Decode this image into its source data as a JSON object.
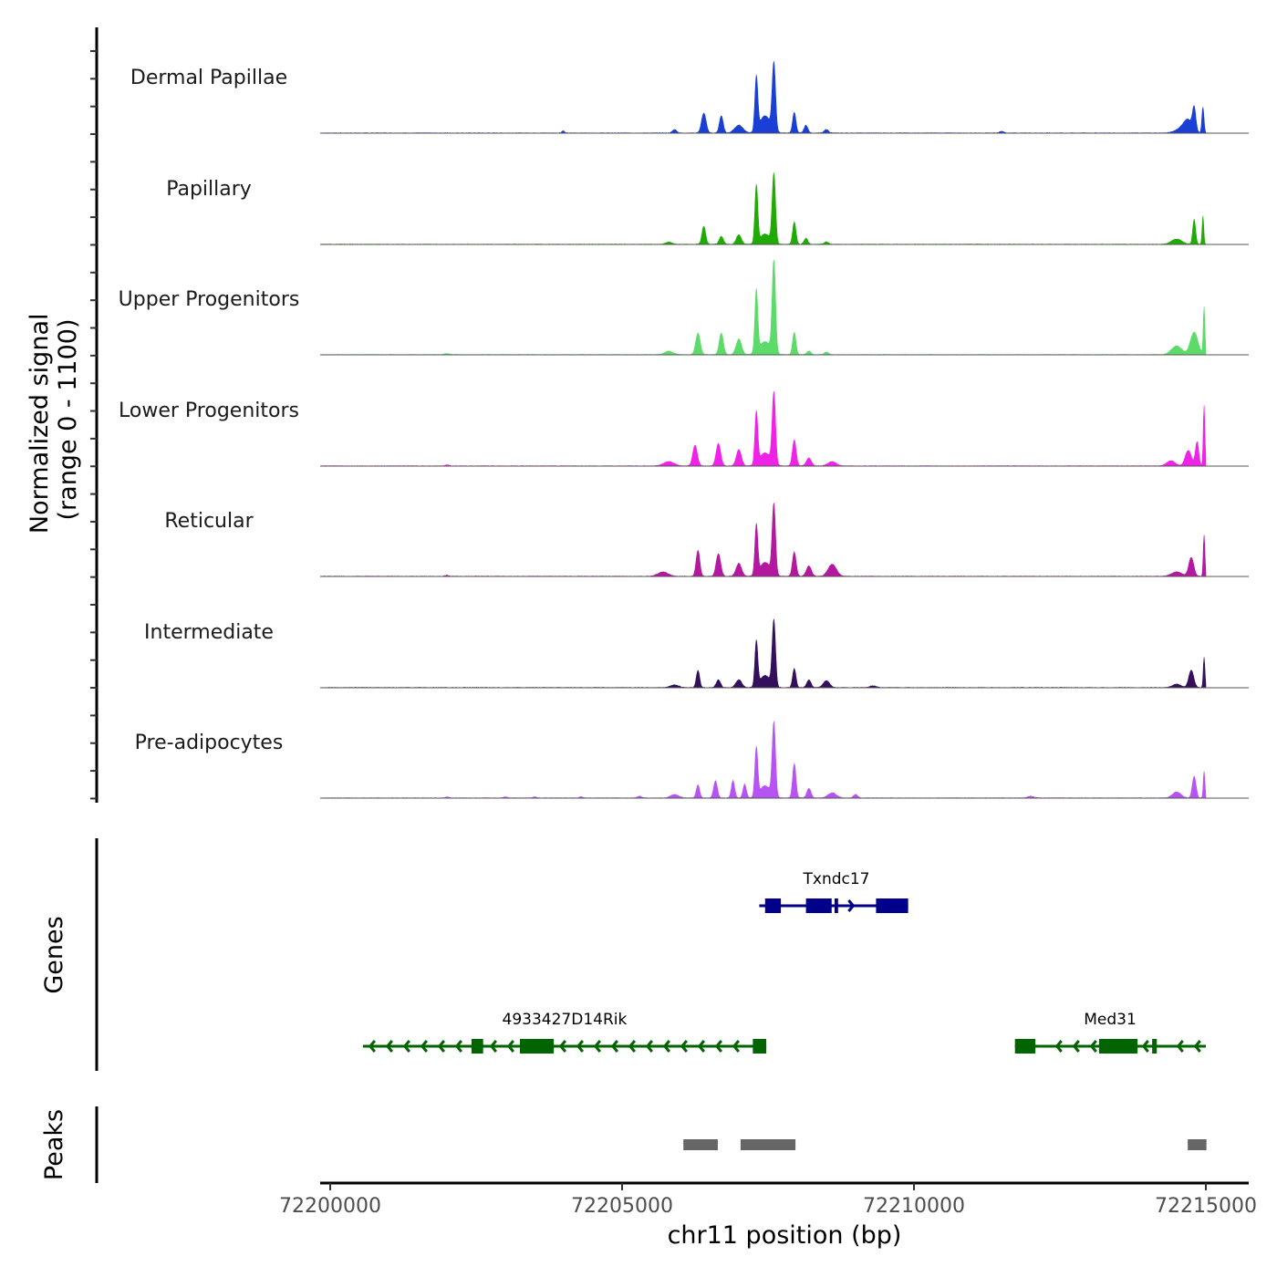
{
  "chart_data": {
    "type": "area",
    "title": "",
    "chromosome": "chr11",
    "xlabel": "chr11 position (bp)",
    "ylabel": "Normalized signal\n(range 0 - 1100)",
    "ylabel_lines": [
      "Normalized signal",
      "(range 0 - 1100)"
    ],
    "ylim": [
      0,
      1100
    ],
    "xlim": [
      72199850,
      72215700
    ],
    "x_ticks": [
      72200000,
      72205000,
      72210000,
      72215000
    ],
    "x_tick_labels": [
      "72200000",
      "72205000",
      "72210000",
      "72215000"
    ],
    "signal_start": 72199850,
    "signal_end": 72215000,
    "tracks": [
      {
        "name": "Dermal Papillae",
        "color": "#1a3fd6",
        "peaks": [
          [
            72203990,
            25,
            60
          ],
          [
            72205900,
            40,
            100
          ],
          [
            72206400,
            230,
            110
          ],
          [
            72206700,
            200,
            90
          ],
          [
            72207000,
            90,
            200
          ],
          [
            72207300,
            620,
            70
          ],
          [
            72207600,
            780,
            80
          ],
          [
            72207450,
            200,
            260
          ],
          [
            72207950,
            240,
            80
          ],
          [
            72208150,
            90,
            90
          ],
          [
            72208500,
            40,
            100
          ],
          [
            72211500,
            20,
            100
          ],
          [
            72214600,
            60,
            300
          ],
          [
            72214800,
            260,
            80
          ],
          [
            72214950,
            300,
            50
          ],
          [
            72214700,
            120,
            200
          ]
        ]
      },
      {
        "name": "Papillary",
        "color": "#1fab04",
        "peaks": [
          [
            72205800,
            25,
            150
          ],
          [
            72206400,
            210,
            90
          ],
          [
            72206700,
            90,
            100
          ],
          [
            72207000,
            110,
            120
          ],
          [
            72207300,
            670,
            70
          ],
          [
            72207600,
            800,
            80
          ],
          [
            72207450,
            120,
            250
          ],
          [
            72207950,
            260,
            80
          ],
          [
            72208150,
            70,
            90
          ],
          [
            72208500,
            30,
            100
          ],
          [
            72214500,
            60,
            250
          ],
          [
            72214800,
            290,
            70
          ],
          [
            72214950,
            330,
            40
          ]
        ]
      },
      {
        "name": "Upper Progenitors",
        "color": "#5cdb6a",
        "peaks": [
          [
            72202000,
            15,
            100
          ],
          [
            72205800,
            40,
            200
          ],
          [
            72206300,
            250,
            110
          ],
          [
            72206700,
            250,
            100
          ],
          [
            72207000,
            180,
            130
          ],
          [
            72207300,
            720,
            70
          ],
          [
            72207600,
            1070,
            80
          ],
          [
            72207450,
            150,
            280
          ],
          [
            72207950,
            260,
            80
          ],
          [
            72208200,
            40,
            100
          ],
          [
            72208500,
            30,
            100
          ],
          [
            72214500,
            100,
            250
          ],
          [
            72214800,
            260,
            180
          ],
          [
            72214970,
            550,
            40
          ]
        ]
      },
      {
        "name": "Lower Progenitors",
        "color": "#f022e8",
        "peaks": [
          [
            72202000,
            10,
            100
          ],
          [
            72205800,
            50,
            250
          ],
          [
            72206250,
            240,
            110
          ],
          [
            72206650,
            260,
            110
          ],
          [
            72207000,
            190,
            120
          ],
          [
            72207300,
            600,
            70
          ],
          [
            72207600,
            820,
            80
          ],
          [
            72207450,
            150,
            270
          ],
          [
            72207950,
            300,
            90
          ],
          [
            72208200,
            90,
            120
          ],
          [
            72208600,
            50,
            200
          ],
          [
            72214400,
            60,
            200
          ],
          [
            72214700,
            180,
            150
          ],
          [
            72214850,
            280,
            80
          ],
          [
            72214970,
            700,
            40
          ]
        ]
      },
      {
        "name": "Reticular",
        "color": "#b3189f",
        "peaks": [
          [
            72202000,
            10,
            100
          ],
          [
            72205700,
            50,
            250
          ],
          [
            72206300,
            300,
            90
          ],
          [
            72206650,
            260,
            110
          ],
          [
            72207000,
            150,
            130
          ],
          [
            72207300,
            570,
            70
          ],
          [
            72207600,
            810,
            80
          ],
          [
            72207450,
            160,
            260
          ],
          [
            72207950,
            280,
            90
          ],
          [
            72208200,
            120,
            120
          ],
          [
            72208600,
            140,
            200
          ],
          [
            72214500,
            50,
            250
          ],
          [
            72214750,
            220,
            120
          ],
          [
            72214970,
            480,
            40
          ]
        ]
      },
      {
        "name": "Intermediate",
        "color": "#330f5c",
        "peaks": [
          [
            72205900,
            30,
            200
          ],
          [
            72206300,
            200,
            80
          ],
          [
            72206650,
            90,
            100
          ],
          [
            72207000,
            90,
            140
          ],
          [
            72207300,
            520,
            70
          ],
          [
            72207600,
            760,
            80
          ],
          [
            72207450,
            140,
            250
          ],
          [
            72207950,
            220,
            80
          ],
          [
            72208200,
            90,
            100
          ],
          [
            72208500,
            80,
            150
          ],
          [
            72209300,
            20,
            150
          ],
          [
            72214500,
            40,
            200
          ],
          [
            72214750,
            200,
            120
          ],
          [
            72214970,
            350,
            40
          ]
        ]
      },
      {
        "name": "Pre-adipocytes",
        "color": "#b753f2",
        "peaks": [
          [
            72202000,
            12,
            100
          ],
          [
            72203000,
            12,
            80
          ],
          [
            72203500,
            12,
            80
          ],
          [
            72204300,
            15,
            80
          ],
          [
            72205300,
            20,
            100
          ],
          [
            72205900,
            40,
            200
          ],
          [
            72206300,
            150,
            80
          ],
          [
            72206600,
            200,
            90
          ],
          [
            72206900,
            200,
            80
          ],
          [
            72207100,
            160,
            80
          ],
          [
            72207300,
            560,
            70
          ],
          [
            72207600,
            850,
            80
          ],
          [
            72207450,
            140,
            260
          ],
          [
            72207950,
            400,
            80
          ],
          [
            72208200,
            110,
            100
          ],
          [
            72208600,
            60,
            200
          ],
          [
            72209000,
            40,
            100
          ],
          [
            72212000,
            20,
            150
          ],
          [
            72214500,
            70,
            200
          ],
          [
            72214800,
            250,
            90
          ],
          [
            72214970,
            310,
            40
          ]
        ]
      }
    ],
    "genes": [
      {
        "name": "Txndc17",
        "strand": "+",
        "color": "#00008b",
        "row": 1,
        "start": 72207350,
        "end": 72209900,
        "exons": [
          [
            72207450,
            72207720
          ],
          [
            72208150,
            72208590
          ],
          [
            72208640,
            72208700
          ],
          [
            72209350,
            72209900
          ]
        ]
      },
      {
        "name": "4933427D14Rik",
        "strand": "-",
        "color": "#006400",
        "row": 2,
        "start": 72200560,
        "end": 72207470,
        "exons": [
          [
            72202420,
            72202620
          ],
          [
            72203250,
            72203830
          ],
          [
            72207240,
            72207470
          ]
        ]
      },
      {
        "name": "Med31",
        "strand": "-",
        "color": "#006400",
        "row": 2,
        "start": 72211730,
        "end": 72215000,
        "exons": [
          [
            72211730,
            72212080
          ],
          [
            72213170,
            72213830
          ],
          [
            72214080,
            72214160
          ]
        ]
      }
    ],
    "peaks_track": {
      "label": "Peaks",
      "color": "#666666",
      "regions": [
        [
          72206050,
          72206640
        ],
        [
          72207030,
          72207970
        ],
        [
          72214690,
          72215010
        ]
      ]
    },
    "panel_labels": {
      "genes": "Genes",
      "peaks": "Peaks"
    }
  }
}
